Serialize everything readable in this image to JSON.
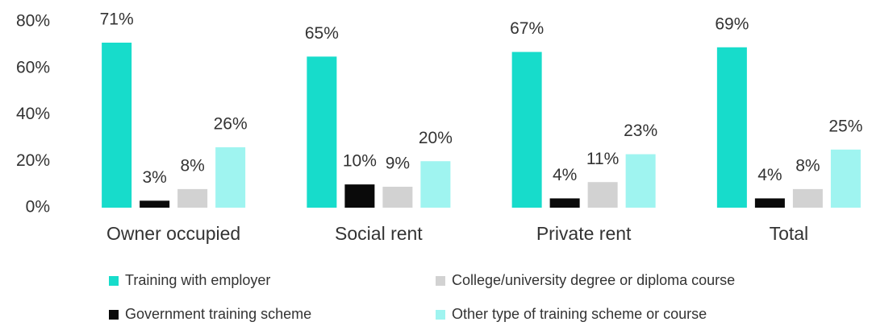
{
  "chart_data": {
    "type": "bar",
    "categories": [
      "Owner occupied",
      "Social rent",
      "Private rent",
      "Total"
    ],
    "series": [
      {
        "name": "Training with employer",
        "color": "#17dccb",
        "values": [
          71,
          65,
          67,
          69
        ],
        "value_labels": [
          "71%",
          "65%",
          "67%",
          "69%"
        ]
      },
      {
        "name": "Government training scheme",
        "color": "#0a0a0a",
        "values": [
          3,
          10,
          4,
          4
        ],
        "value_labels": [
          "3%",
          "10%",
          "4%",
          "4%"
        ]
      },
      {
        "name": "College/university degree or diploma course",
        "color": "#d2d2d2",
        "values": [
          8,
          9,
          11,
          8
        ],
        "value_labels": [
          "8%",
          "9%",
          "11%",
          "8%"
        ]
      },
      {
        "name": "Other type of training scheme or course",
        "color": "#9ff4f0",
        "values": [
          26,
          20,
          23,
          25
        ],
        "value_labels": [
          "26%",
          "20%",
          "23%",
          "25%"
        ]
      }
    ],
    "ylim": [
      0,
      80
    ],
    "yticks": [
      {
        "value": 0,
        "label": "0%"
      },
      {
        "value": 20,
        "label": "20%"
      },
      {
        "value": 40,
        "label": "40%"
      },
      {
        "value": 60,
        "label": "60%"
      },
      {
        "value": 80,
        "label": "80%"
      }
    ],
    "grid": false,
    "legend": "bottom"
  }
}
